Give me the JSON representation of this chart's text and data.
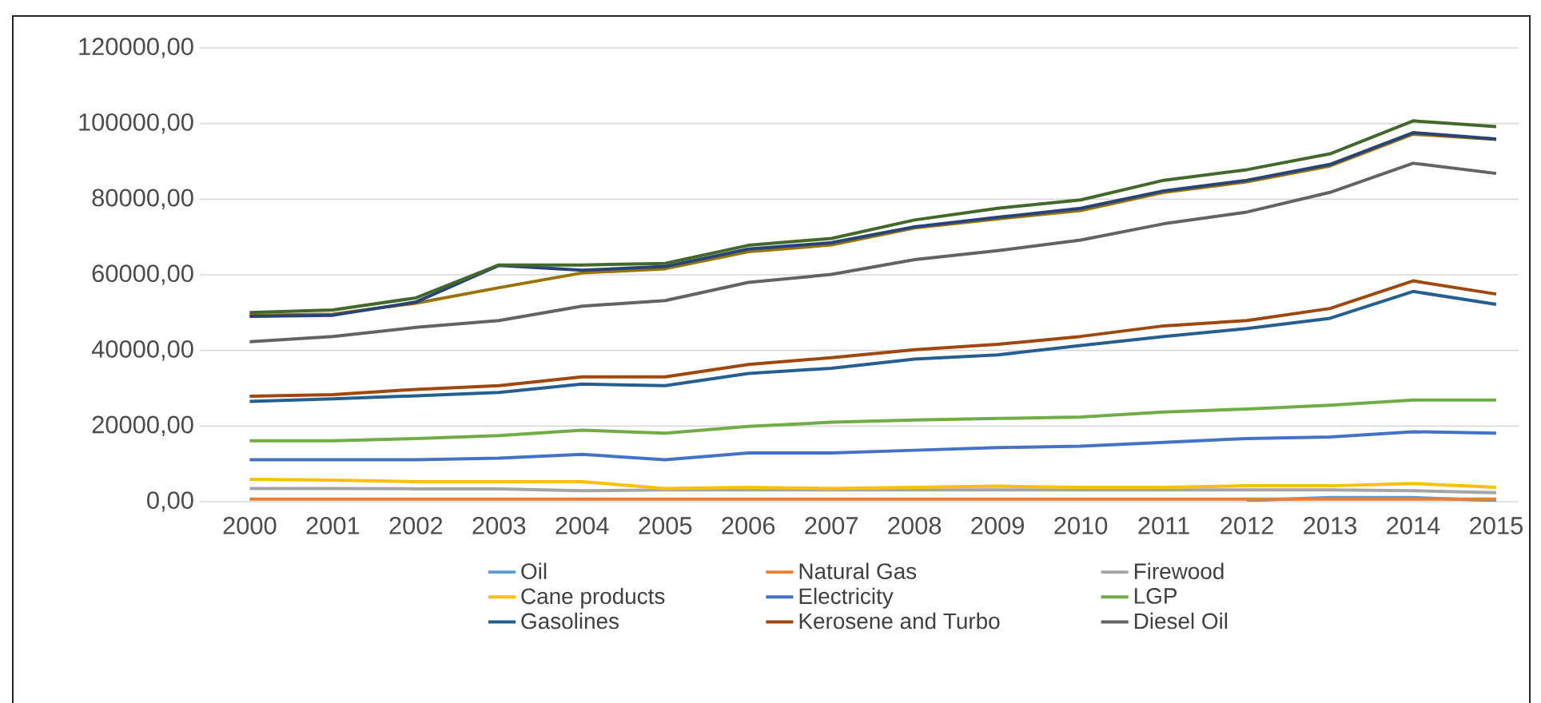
{
  "chart_data": {
    "type": "line",
    "categories": [
      "2000",
      "2001",
      "2002",
      "2003",
      "2004",
      "2005",
      "2006",
      "2007",
      "2008",
      "2009",
      "2010",
      "2011",
      "2012",
      "2013",
      "2014",
      "2015"
    ],
    "ylim": [
      0,
      120000
    ],
    "yticks": [
      {
        "value": 0,
        "label": "0,00"
      },
      {
        "value": 20000,
        "label": "20000,00"
      },
      {
        "value": 40000,
        "label": "40000,00"
      },
      {
        "value": 60000,
        "label": "60000,00"
      },
      {
        "value": 80000,
        "label": "80000,00"
      },
      {
        "value": 100000,
        "label": "100000,00"
      },
      {
        "value": 120000,
        "label": "120000,00"
      }
    ],
    "grid": "y",
    "legend": "bottom",
    "series": [
      {
        "name": "Oil",
        "color": "#5b9bd5",
        "values": [
          null,
          null,
          null,
          null,
          null,
          null,
          null,
          null,
          null,
          null,
          null,
          null,
          300,
          1100,
          1100,
          300
        ]
      },
      {
        "name": "Natural Gas",
        "color": "#ed7d31",
        "values": [
          700,
          700,
          700,
          700,
          700,
          700,
          700,
          700,
          700,
          700,
          700,
          700,
          700,
          700,
          700,
          700
        ]
      },
      {
        "name": "Firewood",
        "color": "#a5a5a5",
        "values": [
          3500,
          3500,
          3400,
          3400,
          2900,
          3100,
          3100,
          3100,
          3100,
          3100,
          3100,
          3100,
          3100,
          3100,
          2900,
          2400
        ]
      },
      {
        "name": "Cane products",
        "color": "#ffc000",
        "values": [
          5900,
          5700,
          5300,
          5300,
          5300,
          3500,
          3800,
          3500,
          3800,
          4100,
          3800,
          3800,
          4200,
          4200,
          4800,
          3800
        ]
      },
      {
        "name": "Electricity",
        "color": "#4472c4",
        "values": [
          11100,
          11100,
          11100,
          11500,
          12500,
          11100,
          12900,
          12900,
          13600,
          14300,
          14700,
          15700,
          16700,
          17100,
          18500,
          18100
        ]
      },
      {
        "name": "LGP",
        "color": "#70ad47",
        "values": [
          16100,
          16100,
          16700,
          17500,
          18900,
          18100,
          19900,
          21000,
          21600,
          22000,
          22400,
          23700,
          24500,
          25500,
          26900,
          26900
        ]
      },
      {
        "name": "Gasolines",
        "color": "#255e91",
        "values": [
          26500,
          27200,
          28000,
          28900,
          31100,
          30700,
          33900,
          35300,
          37700,
          38800,
          41300,
          43700,
          45800,
          48500,
          55600,
          52200
        ]
      },
      {
        "name": "Kerosene and Turbo",
        "color": "#9e480e",
        "values": [
          27900,
          28300,
          29700,
          30700,
          33000,
          33000,
          36300,
          38100,
          40200,
          41600,
          43700,
          46500,
          47900,
          51100,
          58400,
          54900
        ]
      },
      {
        "name": "Diesel Oil",
        "color": "#636363",
        "values": [
          42300,
          43700,
          46100,
          47900,
          51700,
          53200,
          58000,
          60100,
          64000,
          66400,
          69200,
          73500,
          76600,
          81800,
          89500,
          86800
        ]
      },
      {
        "color": "#997300",
        "values": [
          49300,
          49600,
          52500,
          56600,
          60500,
          61600,
          66100,
          67900,
          72400,
          74800,
          77000,
          81800,
          84600,
          88800,
          97200,
          95800
        ]
      },
      {
        "color": "#264478",
        "values": [
          49000,
          49300,
          52800,
          62500,
          61200,
          62200,
          66800,
          68500,
          72700,
          75200,
          77600,
          82200,
          85000,
          89200,
          97600,
          95900
        ]
      },
      {
        "color": "#43682b",
        "values": [
          50000,
          50700,
          53900,
          62600,
          62600,
          63000,
          67800,
          69600,
          74500,
          77600,
          79800,
          85000,
          87800,
          92000,
          100700,
          99200
        ]
      }
    ]
  }
}
